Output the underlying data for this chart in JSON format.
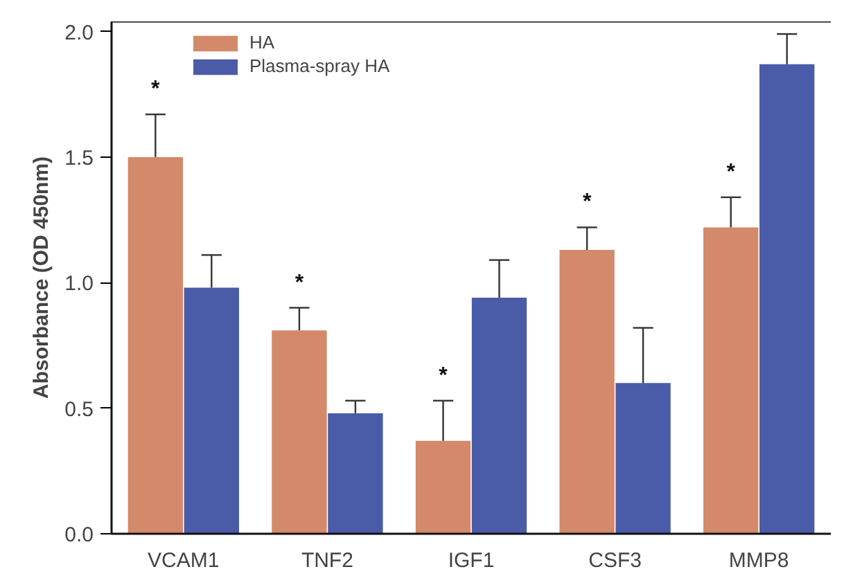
{
  "chart_data": {
    "type": "bar",
    "ylabel": "Absorbance (OD 450nm)",
    "categories": [
      "VCAM1",
      "TNF2",
      "IGF1",
      "CSF3",
      "MMP8"
    ],
    "series": [
      {
        "name": "HA",
        "color": "#d4896a",
        "values": [
          1.5,
          0.81,
          0.37,
          1.13,
          1.22
        ],
        "errors": [
          [
            1.5,
            1.67
          ],
          [
            0.81,
            0.9
          ],
          [
            0.37,
            0.53
          ],
          [
            1.13,
            1.22
          ],
          [
            1.22,
            1.34
          ]
        ]
      },
      {
        "name": "Plasma-spray HA",
        "color": "#4a5ba8",
        "values": [
          0.98,
          0.48,
          0.94,
          0.6,
          1.87
        ],
        "errors": [
          [
            0.98,
            1.11
          ],
          [
            0.48,
            0.53
          ],
          [
            0.94,
            1.09
          ],
          [
            0.6,
            0.82
          ],
          [
            1.87,
            1.99
          ]
        ]
      }
    ],
    "ylim": [
      0,
      2.04
    ],
    "yticks": [
      {
        "value": 0,
        "label": "0.0"
      },
      {
        "value": 0.5,
        "label": "0.5"
      },
      {
        "value": 1,
        "label": "1.0"
      },
      {
        "value": 1.5,
        "label": "1.5"
      },
      {
        "value": 2,
        "label": "2.0"
      }
    ],
    "annotations": [
      "*",
      "*",
      "*",
      "*",
      "*"
    ],
    "grid": false,
    "legend": "top left"
  }
}
